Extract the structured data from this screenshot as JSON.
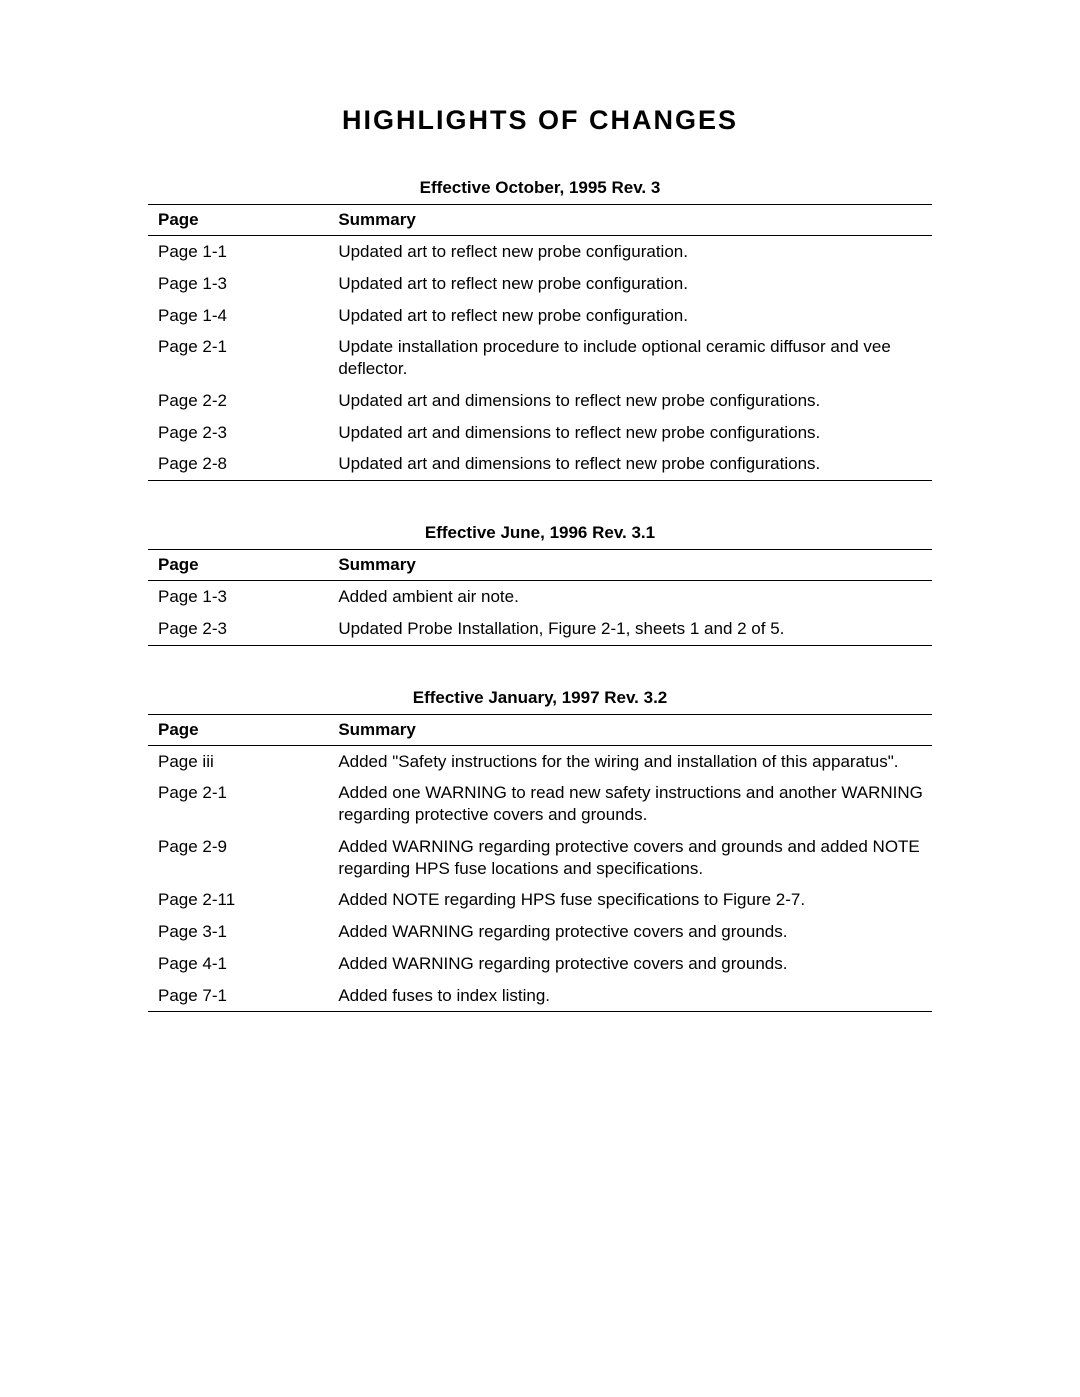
{
  "title": "HIGHLIGHTS  OF  CHANGES",
  "columns": {
    "page": "Page",
    "summary": "Summary"
  },
  "sections": [
    {
      "heading": "Effective October, 1995 Rev. 3",
      "rows": [
        {
          "page": "Page 1-1",
          "summary": "Updated art to reflect new probe configuration."
        },
        {
          "page": "Page 1-3",
          "summary": "Updated art to reflect new probe configuration."
        },
        {
          "page": "Page 1-4",
          "summary": "Updated art to reflect new probe configuration."
        },
        {
          "page": "Page 2-1",
          "summary": "Update installation procedure to include optional ceramic diffusor and vee deflector."
        },
        {
          "page": "Page 2-2",
          "summary": "Updated art and dimensions to reflect new probe configurations."
        },
        {
          "page": "Page 2-3",
          "summary": "Updated art and dimensions to reflect new probe configurations."
        },
        {
          "page": "Page 2-8",
          "summary": "Updated art and dimensions to reflect new probe configurations."
        }
      ]
    },
    {
      "heading": "Effective June, 1996 Rev. 3.1",
      "rows": [
        {
          "page": "Page 1-3",
          "summary": "Added ambient air note."
        },
        {
          "page": "Page 2-3",
          "summary": "Updated Probe Installation, Figure 2-1, sheets 1 and  2 of 5."
        }
      ]
    },
    {
      "heading": "Effective January, 1997 Rev. 3.2",
      "rows": [
        {
          "page": "Page iii",
          "summary": "Added \"Safety instructions for the wiring and installation of this apparatus\"."
        },
        {
          "page": "Page 2-1",
          "summary": "Added one WARNING to read new safety instructions and another WARNING regarding protective covers and grounds."
        },
        {
          "page": "Page 2-9",
          "summary": "Added WARNING regarding protective covers and grounds and added NOTE regarding HPS fuse locations and specifications."
        },
        {
          "page": "Page 2-11",
          "summary": "Added NOTE regarding HPS fuse specifications to Figure 2-7."
        },
        {
          "page": "Page 3-1",
          "summary": "Added WARNING regarding protective covers and grounds."
        },
        {
          "page": "Page 4-1",
          "summary": "Added WARNING regarding protective covers and grounds."
        },
        {
          "page": "Page 7-1",
          "summary": "Added fuses to index listing."
        }
      ]
    }
  ],
  "styling": {
    "background_color": "#ffffff",
    "text_color": "#000000",
    "title_fontsize": 27,
    "section_heading_fontsize": 17,
    "body_fontsize": 17,
    "border_color": "#000000",
    "col_page_width_pct": 23,
    "col_summary_width_pct": 77
  }
}
